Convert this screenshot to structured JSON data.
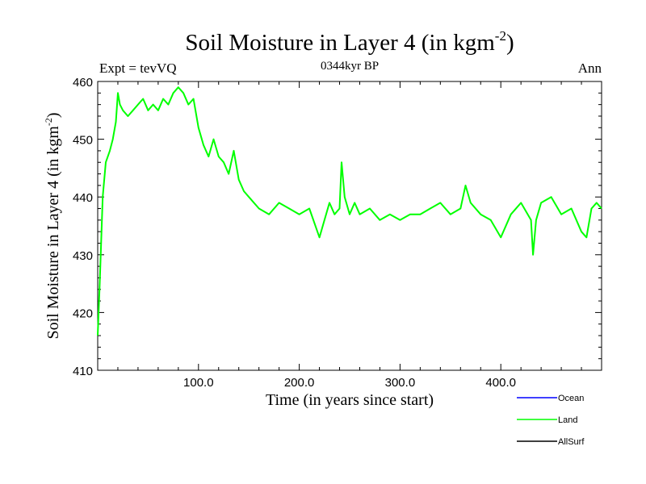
{
  "chart_data": {
    "type": "line",
    "title": "Soil Moisture in Layer 4 (in kgm",
    "title_sup": "-2",
    "title_close": ")",
    "subtitle_left": "Expt = tevVQ",
    "subtitle_center": "0344kyr BP",
    "subtitle_right": "Ann",
    "xlabel": "Time (in years since start)",
    "ylabel": "Soil Moisture in Layer 4 (in kgm",
    "ylabel_sup": "-2",
    "ylabel_close": ")",
    "xlim": [
      0,
      500
    ],
    "ylim": [
      410,
      460
    ],
    "xticks": [
      100,
      200,
      300,
      400
    ],
    "xtick_labels": [
      "100.0",
      "200.0",
      "300.0",
      "400.0"
    ],
    "yticks": [
      410,
      420,
      430,
      440,
      450,
      460
    ],
    "ytick_labels": [
      "410",
      "420",
      "430",
      "440",
      "450",
      "460"
    ],
    "legend_position": "bottom-right, below plot",
    "series": [
      {
        "name": "Ocean",
        "color": "#0000ff",
        "x": [],
        "values": []
      },
      {
        "name": "Land",
        "color": "#00ff00",
        "x": [
          0,
          2,
          5,
          8,
          12,
          15,
          18,
          20,
          22,
          25,
          30,
          35,
          40,
          45,
          50,
          55,
          60,
          65,
          70,
          75,
          80,
          85,
          90,
          95,
          100,
          105,
          110,
          115,
          120,
          125,
          130,
          135,
          140,
          145,
          150,
          160,
          170,
          180,
          190,
          200,
          210,
          220,
          225,
          230,
          235,
          240,
          242,
          245,
          250,
          255,
          260,
          270,
          280,
          290,
          300,
          310,
          320,
          330,
          340,
          350,
          360,
          365,
          370,
          380,
          390,
          400,
          410,
          420,
          430,
          432,
          435,
          440,
          450,
          460,
          470,
          480,
          485,
          490,
          495,
          500
        ],
        "values": [
          416,
          425,
          440,
          446,
          448,
          450,
          453,
          458,
          456,
          455,
          454,
          455,
          456,
          457,
          455,
          456,
          455,
          457,
          456,
          458,
          459,
          458,
          456,
          457,
          452,
          449,
          447,
          450,
          447,
          446,
          444,
          448,
          443,
          441,
          440,
          438,
          437,
          439,
          438,
          437,
          438,
          433,
          436,
          439,
          437,
          438,
          446,
          440,
          437,
          439,
          437,
          438,
          436,
          437,
          436,
          437,
          437,
          438,
          439,
          437,
          438,
          442,
          439,
          437,
          436,
          433,
          437,
          439,
          436,
          430,
          436,
          439,
          440,
          437,
          438,
          434,
          433,
          438,
          439,
          438
        ]
      },
      {
        "name": "AllSurf",
        "color": "#000000",
        "x": [],
        "values": []
      }
    ]
  }
}
